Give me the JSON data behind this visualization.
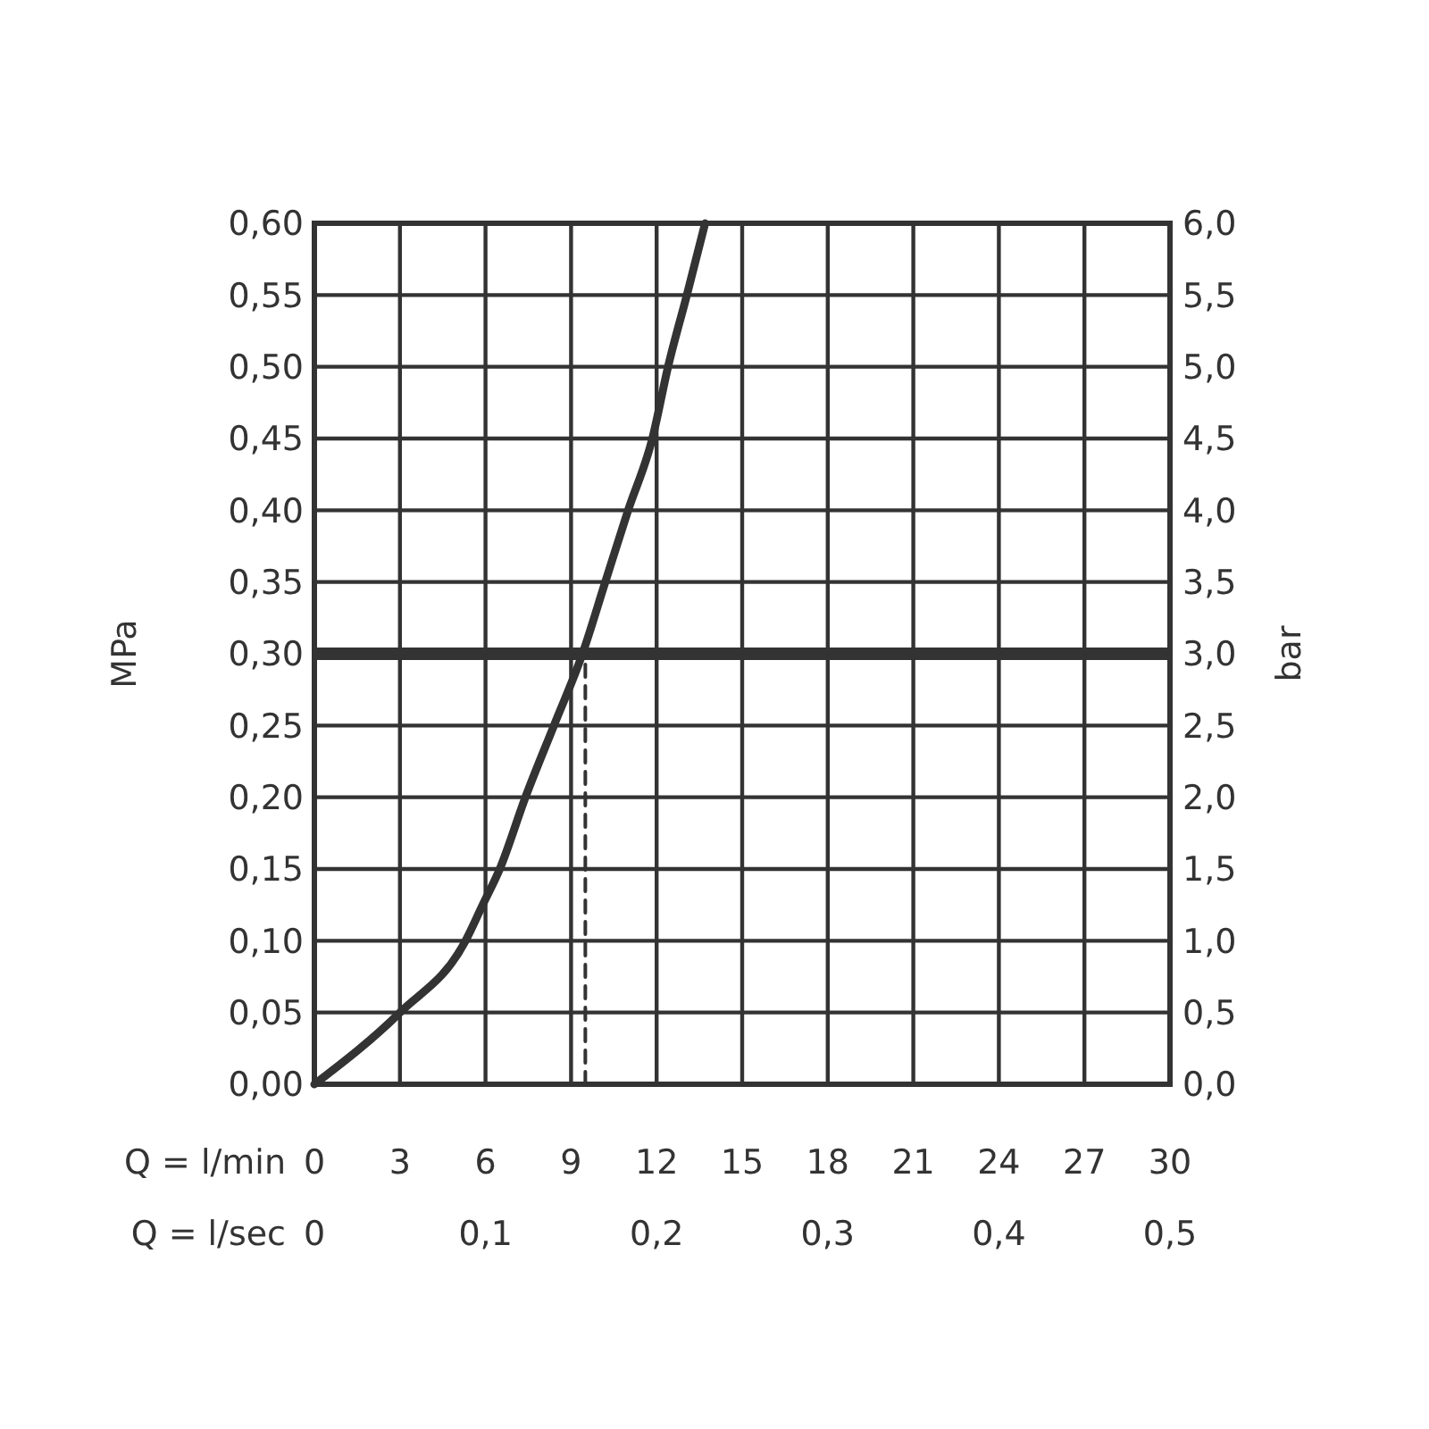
{
  "chart_data": {
    "type": "line",
    "xlabel": "Q = l/min",
    "x2label": "Q = l/sec",
    "ylabel": "MPa",
    "y2label": "bar",
    "xlim": [
      0,
      30
    ],
    "xticks": [
      0,
      3,
      6,
      9,
      12,
      15,
      18,
      21,
      24,
      27,
      30
    ],
    "x2lim": [
      0,
      0.5
    ],
    "x2ticks": [
      0,
      {
        "value": 0.1,
        "label": "0,1"
      },
      {
        "value": 0.2,
        "label": "0,2"
      },
      {
        "value": 0.3,
        "label": "0,3"
      },
      {
        "value": 0.4,
        "label": "0,4"
      },
      {
        "value": 0.5,
        "label": "0,5"
      }
    ],
    "ylim": [
      0,
      0.6
    ],
    "yticks": [
      {
        "value": 0,
        "label": "0,00"
      },
      {
        "value": 0.05,
        "label": "0,05"
      },
      {
        "value": 0.1,
        "label": "0,10"
      },
      {
        "value": 0.15,
        "label": "0,15"
      },
      {
        "value": 0.2,
        "label": "0,20"
      },
      {
        "value": 0.25,
        "label": "0,25"
      },
      {
        "value": 0.3,
        "label": "0,30"
      },
      {
        "value": 0.35,
        "label": "0,35"
      },
      {
        "value": 0.4,
        "label": "0,40"
      },
      {
        "value": 0.45,
        "label": "0,45"
      },
      {
        "value": 0.5,
        "label": "0,50"
      },
      {
        "value": 0.55,
        "label": "0,55"
      },
      {
        "value": 0.6,
        "label": "0,60"
      }
    ],
    "y2lim": [
      0,
      6
    ],
    "y2ticks": [
      {
        "value": 0,
        "label": "0,0"
      },
      {
        "value": 0.5,
        "label": "0,5"
      },
      {
        "value": 1,
        "label": "1,0"
      },
      {
        "value": 1.5,
        "label": "1,5"
      },
      {
        "value": 2,
        "label": "2,0"
      },
      {
        "value": 2.5,
        "label": "2,5"
      },
      {
        "value": 3,
        "label": "3,0"
      },
      {
        "value": 3.5,
        "label": "3,5"
      },
      {
        "value": 4,
        "label": "4,0"
      },
      {
        "value": 4.5,
        "label": "4,5"
      },
      {
        "value": 5,
        "label": "5,0"
      },
      {
        "value": 5.5,
        "label": "5,5"
      },
      {
        "value": 6,
        "label": "6,0"
      }
    ],
    "grid": true,
    "marker": "none",
    "series": [
      {
        "color": "#333333",
        "line_style": "solid",
        "x": [
          0,
          3,
          5.3,
          5.9,
          6.5,
          7.4,
          8.4,
          9.4,
          10.2,
          11.0,
          11.85,
          12.4,
          13.06,
          13.7
        ],
        "values": [
          0,
          0.05,
          0.1,
          0.125,
          0.15,
          0.2,
          0.25,
          0.3,
          0.35,
          0.4,
          0.45,
          0.5,
          0.55,
          0.6
        ]
      },
      {
        "color": "#333333",
        "line_style": "dashed",
        "x": [
          9.5,
          9.5
        ],
        "values": [
          0,
          0.3
        ]
      }
    ],
    "ref_lines": [
      {
        "axis": "y",
        "value": 0.3,
        "color": "#333333"
      }
    ]
  }
}
